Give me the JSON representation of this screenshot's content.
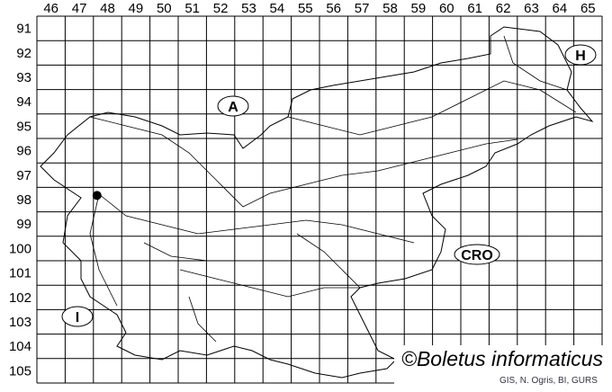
{
  "map": {
    "columns": [
      "46",
      "47",
      "48",
      "49",
      "50",
      "51",
      "52",
      "53",
      "54",
      "55",
      "56",
      "57",
      "58",
      "59",
      "60",
      "61",
      "62",
      "63",
      "64",
      "65"
    ],
    "rows": [
      "91",
      "92",
      "93",
      "94",
      "95",
      "96",
      "97",
      "98",
      "99",
      "100",
      "101",
      "102",
      "103",
      "104",
      "105"
    ],
    "neighbours": [
      {
        "id": "austria",
        "label": "A"
      },
      {
        "id": "hungary",
        "label": "H"
      },
      {
        "id": "croatia",
        "label": "CRO"
      },
      {
        "id": "italy",
        "label": "I"
      }
    ],
    "records": [
      {
        "col": 48,
        "row": 98
      }
    ],
    "colors": {
      "grid": "#000000",
      "border": "#000000",
      "marker": "#000000"
    }
  },
  "attribution": {
    "title": "©Boletus informaticus",
    "credits": "GIS, N. Ogris, BI, GURS"
  }
}
